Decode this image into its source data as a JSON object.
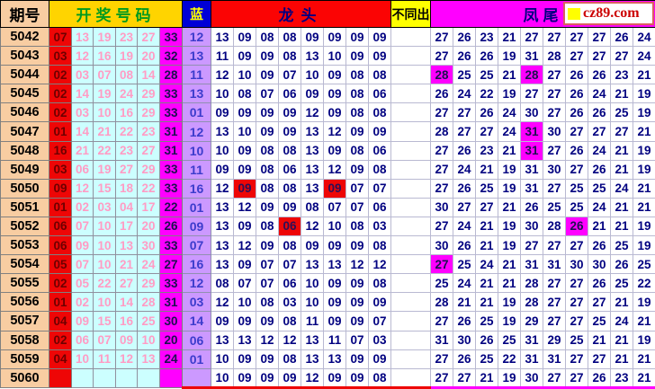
{
  "logo": {
    "text": "cz89.com"
  },
  "colors": {
    "issue_bg": "#f8cda2",
    "numbers_header_bg": "#ffd400",
    "numbers_header_text": "#009a1e",
    "red_cell": "#ee0606",
    "cyan_cell": "#ccffff",
    "magenta_cell": "#ff00ff",
    "blue_header_bg": "#0000d6",
    "blue_cell_bg": "#cc99ff",
    "navy_text": "#000080",
    "pink_text": "#ff9cc4",
    "logo_text": "#cc0000",
    "logo_square": "#ffff00"
  },
  "header": {
    "issue": "期号",
    "numbers": "开奖号码",
    "blue": "蓝",
    "dragon": "龙头",
    "diff": "不同出",
    "phoenix": "凤尾"
  },
  "rows": [
    {
      "issue": "5042",
      "first": "07",
      "mids": [
        "13",
        "19",
        "23",
        "27"
      ],
      "tail": "33",
      "blue": "12",
      "dragon": [
        "13",
        "09",
        "08",
        "08",
        "09",
        "09",
        "09",
        "09"
      ],
      "dragon_hl": [],
      "diff": "",
      "phoenix": [
        "27",
        "26",
        "23",
        "21",
        "27",
        "27",
        "27",
        "27",
        "26",
        "24"
      ],
      "phoenix_hl": []
    },
    {
      "issue": "5043",
      "first": "03",
      "mids": [
        "12",
        "16",
        "19",
        "20"
      ],
      "tail": "32",
      "blue": "13",
      "dragon": [
        "11",
        "09",
        "09",
        "08",
        "13",
        "10",
        "09",
        "09"
      ],
      "dragon_hl": [],
      "diff": "",
      "phoenix": [
        "27",
        "26",
        "26",
        "19",
        "31",
        "28",
        "27",
        "27",
        "27",
        "24"
      ],
      "phoenix_hl": []
    },
    {
      "issue": "5044",
      "first": "02",
      "mids": [
        "03",
        "07",
        "08",
        "14"
      ],
      "tail": "28",
      "blue": "11",
      "dragon": [
        "12",
        "10",
        "09",
        "07",
        "10",
        "09",
        "08",
        "08"
      ],
      "dragon_hl": [],
      "diff": "",
      "phoenix": [
        "28",
        "25",
        "25",
        "21",
        "28",
        "27",
        "26",
        "26",
        "23",
        "21"
      ],
      "phoenix_hl": [
        0,
        4
      ]
    },
    {
      "issue": "5045",
      "first": "02",
      "mids": [
        "14",
        "19",
        "24",
        "29"
      ],
      "tail": "33",
      "blue": "13",
      "dragon": [
        "10",
        "08",
        "07",
        "06",
        "09",
        "09",
        "08",
        "06"
      ],
      "dragon_hl": [],
      "diff": "",
      "phoenix": [
        "26",
        "24",
        "22",
        "19",
        "27",
        "27",
        "26",
        "24",
        "21",
        "19"
      ],
      "phoenix_hl": []
    },
    {
      "issue": "5046",
      "first": "02",
      "mids": [
        "03",
        "10",
        "16",
        "29"
      ],
      "tail": "33",
      "blue": "01",
      "dragon": [
        "09",
        "09",
        "09",
        "09",
        "12",
        "09",
        "08",
        "08"
      ],
      "dragon_hl": [],
      "diff": "",
      "phoenix": [
        "27",
        "27",
        "26",
        "24",
        "30",
        "27",
        "26",
        "26",
        "25",
        "19"
      ],
      "phoenix_hl": []
    },
    {
      "issue": "5047",
      "first": "01",
      "mids": [
        "14",
        "21",
        "22",
        "23"
      ],
      "tail": "31",
      "blue": "12",
      "dragon": [
        "13",
        "10",
        "09",
        "09",
        "13",
        "12",
        "09",
        "09"
      ],
      "dragon_hl": [],
      "diff": "",
      "phoenix": [
        "28",
        "27",
        "27",
        "24",
        "31",
        "30",
        "27",
        "27",
        "27",
        "21"
      ],
      "phoenix_hl": [
        4
      ]
    },
    {
      "issue": "5048",
      "first": "16",
      "mids": [
        "21",
        "22",
        "23",
        "27"
      ],
      "tail": "31",
      "blue": "10",
      "dragon": [
        "10",
        "09",
        "08",
        "08",
        "13",
        "09",
        "08",
        "06"
      ],
      "dragon_hl": [],
      "diff": "",
      "phoenix": [
        "27",
        "26",
        "23",
        "21",
        "31",
        "27",
        "26",
        "24",
        "21",
        "19"
      ],
      "phoenix_hl": [
        4
      ]
    },
    {
      "issue": "5049",
      "first": "03",
      "mids": [
        "06",
        "19",
        "27",
        "29"
      ],
      "tail": "33",
      "blue": "11",
      "dragon": [
        "09",
        "09",
        "08",
        "06",
        "13",
        "12",
        "09",
        "08"
      ],
      "dragon_hl": [],
      "diff": "",
      "phoenix": [
        "27",
        "24",
        "21",
        "19",
        "31",
        "30",
        "27",
        "26",
        "21",
        "19"
      ],
      "phoenix_hl": []
    },
    {
      "issue": "5050",
      "first": "09",
      "mids": [
        "12",
        "15",
        "18",
        "22"
      ],
      "tail": "33",
      "blue": "16",
      "dragon": [
        "12",
        "09",
        "08",
        "08",
        "13",
        "09",
        "07",
        "07"
      ],
      "dragon_hl": [
        1,
        5
      ],
      "diff": "",
      "phoenix": [
        "27",
        "26",
        "25",
        "19",
        "31",
        "27",
        "25",
        "25",
        "24",
        "21"
      ],
      "phoenix_hl": []
    },
    {
      "issue": "5051",
      "first": "01",
      "mids": [
        "02",
        "03",
        "04",
        "17"
      ],
      "tail": "22",
      "blue": "01",
      "dragon": [
        "13",
        "12",
        "09",
        "09",
        "08",
        "07",
        "07",
        "06"
      ],
      "dragon_hl": [],
      "diff": "",
      "phoenix": [
        "30",
        "27",
        "27",
        "21",
        "26",
        "25",
        "25",
        "24",
        "21",
        "21"
      ],
      "phoenix_hl": []
    },
    {
      "issue": "5052",
      "first": "06",
      "mids": [
        "07",
        "10",
        "17",
        "20"
      ],
      "tail": "26",
      "blue": "09",
      "dragon": [
        "13",
        "09",
        "08",
        "06",
        "12",
        "10",
        "08",
        "03"
      ],
      "dragon_hl": [
        3
      ],
      "diff": "",
      "phoenix": [
        "27",
        "24",
        "21",
        "19",
        "30",
        "28",
        "26",
        "21",
        "21",
        "19"
      ],
      "phoenix_hl": [
        6
      ]
    },
    {
      "issue": "5053",
      "first": "06",
      "mids": [
        "09",
        "10",
        "13",
        "30"
      ],
      "tail": "33",
      "blue": "07",
      "dragon": [
        "13",
        "12",
        "09",
        "08",
        "09",
        "09",
        "09",
        "08"
      ],
      "dragon_hl": [],
      "diff": "",
      "phoenix": [
        "30",
        "26",
        "21",
        "19",
        "27",
        "27",
        "27",
        "26",
        "25",
        "19"
      ],
      "phoenix_hl": []
    },
    {
      "issue": "5054",
      "first": "05",
      "mids": [
        "07",
        "10",
        "21",
        "24"
      ],
      "tail": "27",
      "blue": "16",
      "dragon": [
        "13",
        "09",
        "07",
        "07",
        "13",
        "13",
        "12",
        "12"
      ],
      "dragon_hl": [],
      "diff": "",
      "phoenix": [
        "27",
        "25",
        "24",
        "21",
        "31",
        "31",
        "30",
        "30",
        "26",
        "25"
      ],
      "phoenix_hl": [
        0
      ]
    },
    {
      "issue": "5055",
      "first": "02",
      "mids": [
        "05",
        "22",
        "27",
        "29"
      ],
      "tail": "33",
      "blue": "12",
      "dragon": [
        "08",
        "07",
        "07",
        "06",
        "10",
        "09",
        "09",
        "08"
      ],
      "dragon_hl": [],
      "diff": "",
      "phoenix": [
        "25",
        "24",
        "21",
        "21",
        "28",
        "27",
        "27",
        "26",
        "25",
        "22"
      ],
      "phoenix_hl": []
    },
    {
      "issue": "5056",
      "first": "01",
      "mids": [
        "02",
        "10",
        "14",
        "28"
      ],
      "tail": "31",
      "blue": "03",
      "dragon": [
        "12",
        "10",
        "08",
        "03",
        "10",
        "09",
        "09",
        "09"
      ],
      "dragon_hl": [],
      "diff": "",
      "phoenix": [
        "28",
        "21",
        "21",
        "19",
        "28",
        "27",
        "27",
        "27",
        "21",
        "19"
      ],
      "phoenix_hl": []
    },
    {
      "issue": "5057",
      "first": "04",
      "mids": [
        "09",
        "15",
        "16",
        "25"
      ],
      "tail": "30",
      "blue": "14",
      "dragon": [
        "09",
        "09",
        "09",
        "08",
        "11",
        "09",
        "09",
        "07"
      ],
      "dragon_hl": [],
      "diff": "",
      "phoenix": [
        "27",
        "26",
        "25",
        "19",
        "29",
        "27",
        "27",
        "25",
        "24",
        "21"
      ],
      "phoenix_hl": []
    },
    {
      "issue": "5058",
      "first": "02",
      "mids": [
        "06",
        "07",
        "09",
        "10"
      ],
      "tail": "20",
      "blue": "06",
      "dragon": [
        "13",
        "13",
        "12",
        "12",
        "13",
        "11",
        "07",
        "03"
      ],
      "dragon_hl": [],
      "diff": "",
      "phoenix": [
        "31",
        "30",
        "26",
        "25",
        "31",
        "29",
        "25",
        "21",
        "21",
        "19"
      ],
      "phoenix_hl": []
    },
    {
      "issue": "5059",
      "first": "04",
      "mids": [
        "10",
        "11",
        "12",
        "13"
      ],
      "tail": "24",
      "blue": "01",
      "dragon": [
        "10",
        "09",
        "09",
        "08",
        "13",
        "13",
        "09",
        "09"
      ],
      "dragon_hl": [],
      "diff": "",
      "phoenix": [
        "27",
        "26",
        "25",
        "22",
        "31",
        "31",
        "27",
        "27",
        "21",
        "21"
      ],
      "phoenix_hl": []
    },
    {
      "issue": "5060",
      "first": "",
      "mids": [
        "",
        "",
        "",
        ""
      ],
      "tail": "",
      "blue": "",
      "dragon": [
        "10",
        "09",
        "09",
        "09",
        "12",
        "09",
        "09",
        "08"
      ],
      "dragon_hl": [],
      "diff": "",
      "phoenix": [
        "27",
        "27",
        "21",
        "19",
        "30",
        "27",
        "27",
        "26",
        "23",
        "21"
      ],
      "phoenix_hl": []
    }
  ]
}
